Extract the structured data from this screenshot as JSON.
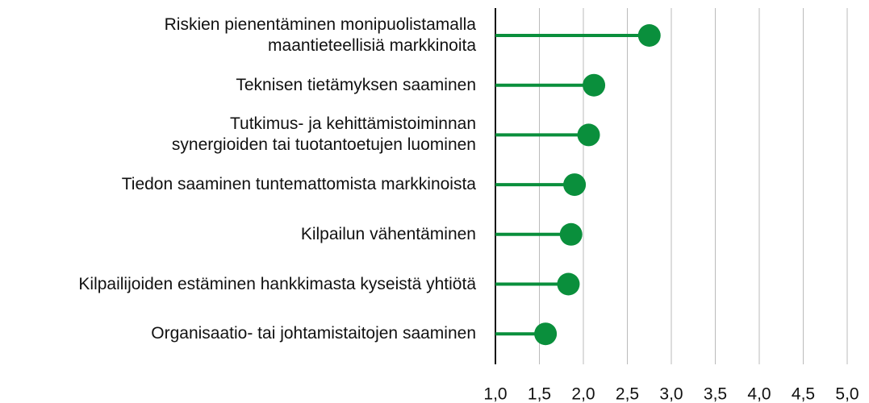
{
  "chart_data": {
    "type": "lollipop",
    "categories": [
      "Riskien pienentäminen monipuolistamalla\nmaantieteellisiä markkinoita",
      "Teknisen tietämyksen saaminen",
      "Tutkimus- ja kehittämistoiminnan\nsynergioiden tai tuotantoetujen luominen",
      "Tiedon saaminen tuntemattomista markkinoista",
      "Kilpailun vähentäminen",
      "Kilpailijoiden estäminen hankkimasta kyseistä yhtiötä",
      "Organisaatio- tai johtamistaitojen saaminen"
    ],
    "values": [
      2.75,
      2.12,
      2.06,
      1.9,
      1.86,
      1.83,
      1.57
    ],
    "color": "#0a8f3c",
    "xlim": [
      1.0,
      5.0
    ],
    "xticks": [
      {
        "value": 1.0,
        "label": "1,0"
      },
      {
        "value": 1.5,
        "label": "1,5"
      },
      {
        "value": 2.0,
        "label": "2,0"
      },
      {
        "value": 2.5,
        "label": "2,5"
      },
      {
        "value": 3.0,
        "label": "3,0"
      },
      {
        "value": 3.5,
        "label": "3,5"
      },
      {
        "value": 4.0,
        "label": "4,0"
      },
      {
        "value": 4.5,
        "label": "4,5"
      },
      {
        "value": 5.0,
        "label": "5,0"
      }
    ],
    "grid": true
  }
}
